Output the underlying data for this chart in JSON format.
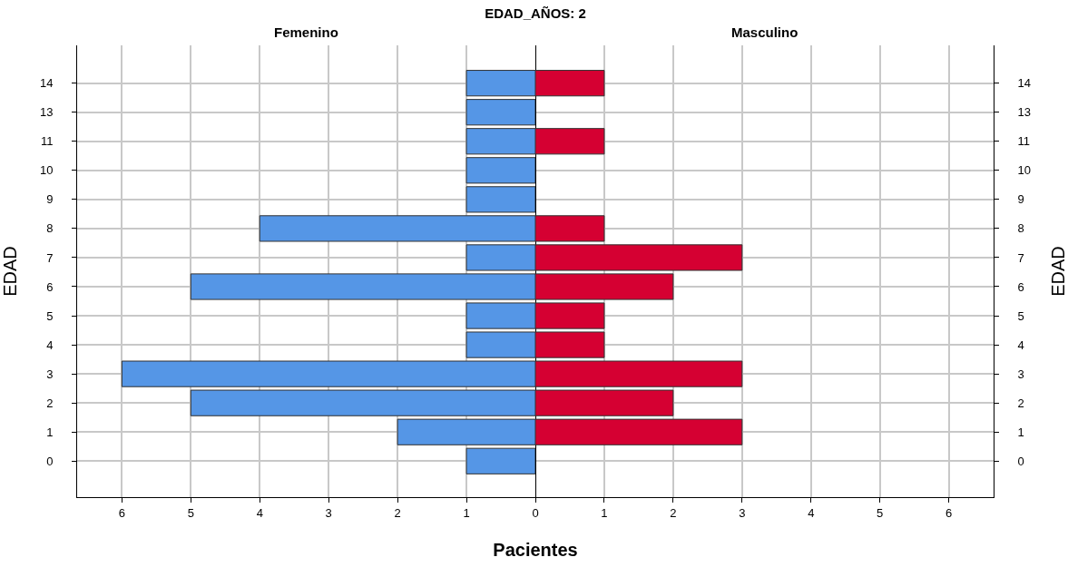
{
  "chart_data": [
    {
      "type": "bar",
      "orientation": "horizontal",
      "title": "EDAD_AÑOS: 2",
      "subtitle": "Femenino",
      "xlabel": "Pacientes",
      "ylabel": "EDAD",
      "categories": [
        "14",
        "13",
        "11",
        "10",
        "9",
        "8",
        "7",
        "6",
        "5",
        "4",
        "3",
        "2",
        "1",
        "0"
      ],
      "series": [
        {
          "color": "#5596e6",
          "values": [
            1,
            1,
            1,
            1,
            1,
            4,
            1,
            5,
            1,
            1,
            6,
            5,
            2,
            1
          ]
        }
      ],
      "xlim": [
        6.65,
        0
      ],
      "xticks": [
        6,
        5,
        4,
        3,
        2,
        1,
        {
          "value": 0,
          "label": null
        }
      ],
      "grid": true
    },
    {
      "type": "bar",
      "orientation": "horizontal",
      "subtitle": "Masculino",
      "ylabel": "EDAD",
      "categories": [
        "14",
        "13",
        "11",
        "10",
        "9",
        "8",
        "7",
        "6",
        "5",
        "4",
        "3",
        "2",
        "1",
        "0"
      ],
      "series": [
        {
          "color": "#d50032",
          "values": [
            1,
            0,
            1,
            0,
            0,
            1,
            3,
            2,
            1,
            1,
            3,
            2,
            3,
            0
          ]
        }
      ],
      "xlim": [
        0,
        6.65
      ],
      "xticks": [
        0,
        1,
        2,
        3,
        4,
        5,
        6
      ],
      "grid": true
    }
  ]
}
